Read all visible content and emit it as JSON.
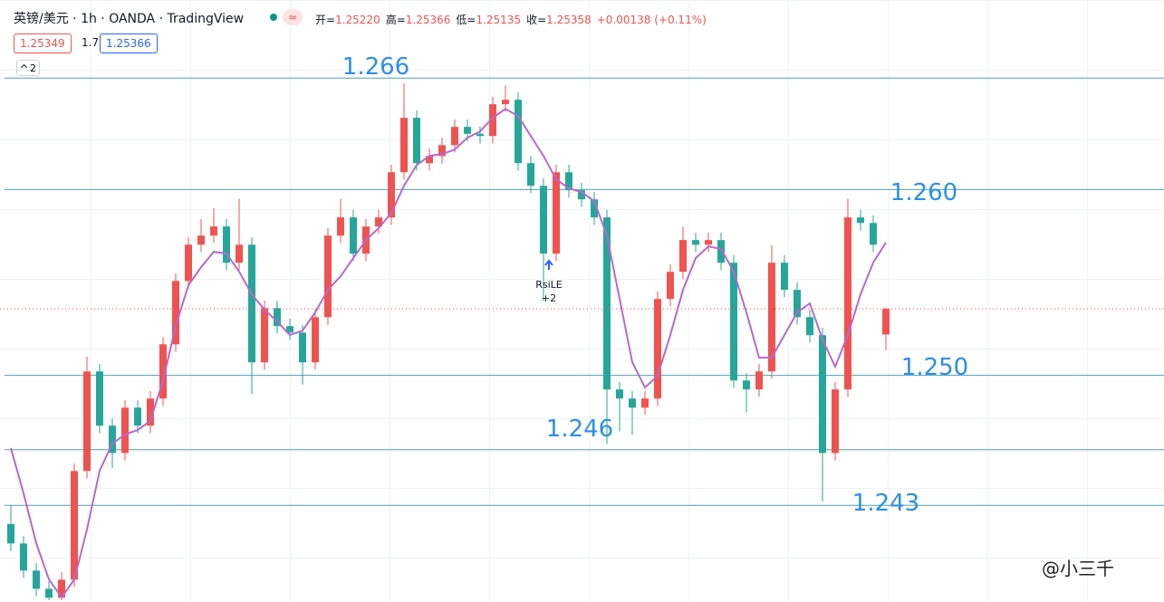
{
  "chart_data": {
    "type": "candlestick",
    "title": "英镑/美元 · 1h · OANDA · TradingView",
    "legend": {
      "items": [
        {
          "label": "开=",
          "value": "1.25220"
        },
        {
          "label": "高=",
          "value": "1.25366"
        },
        {
          "label": "低=",
          "value": "1.25135"
        },
        {
          "label": "收=",
          "value": "1.25358"
        }
      ],
      "change": "+0.00138 (+0.11%)"
    },
    "boxes": {
      "sell": "1.25349",
      "spread": "1.7",
      "buy": "1.25366",
      "indicators": "2"
    },
    "colors": {
      "up": "#ef5350",
      "down": "#26a69a"
    },
    "ohlc": [
      [
        1.242,
        1.243,
        1.24055,
        1.24095
      ],
      [
        1.24095,
        1.24135,
        1.23909,
        1.23949
      ],
      [
        1.23949,
        1.23989,
        1.23811,
        1.23851
      ],
      [
        1.23851,
        1.23891,
        1.2379,
        1.23803
      ],
      [
        1.23803,
        1.2394,
        1.2379,
        1.239
      ],
      [
        1.239,
        1.24525,
        1.2386,
        1.24485
      ],
      [
        1.24485,
        1.251,
        1.24445,
        1.25021
      ],
      [
        1.25021,
        1.25061,
        1.24689,
        1.24729
      ],
      [
        1.24729,
        1.24769,
        1.245,
        1.24582
      ],
      [
        1.24582,
        1.24866,
        1.24542,
        1.24826
      ],
      [
        1.24826,
        1.24866,
        1.24689,
        1.24729
      ],
      [
        1.24729,
        1.24915,
        1.24689,
        1.24875
      ],
      [
        1.24875,
        1.25207,
        1.24835,
        1.25167
      ],
      [
        1.25167,
        1.25548,
        1.25127,
        1.25508
      ],
      [
        1.25508,
        1.25743,
        1.25468,
        1.25703
      ],
      [
        1.25703,
        1.2584,
        1.25663,
        1.25752
      ],
      [
        1.25752,
        1.259,
        1.25712,
        1.25801
      ],
      [
        1.25801,
        1.25841,
        1.25566,
        1.25606
      ],
      [
        1.25606,
        1.2595,
        1.25566,
        1.25703
      ],
      [
        1.25703,
        1.25743,
        1.249,
        1.2507
      ],
      [
        1.2507,
        1.25402,
        1.2503,
        1.25362
      ],
      [
        1.25362,
        1.25402,
        1.25225,
        1.25265
      ],
      [
        1.25265,
        1.25305,
        1.2519,
        1.2523
      ],
      [
        1.2523,
        1.2527,
        1.2495,
        1.2507
      ],
      [
        1.2507,
        1.25353,
        1.2503,
        1.25313
      ],
      [
        1.25313,
        1.25792,
        1.25273,
        1.25752
      ],
      [
        1.25752,
        1.2595,
        1.25712,
        1.2585
      ],
      [
        1.2585,
        1.2589,
        1.25615,
        1.25655
      ],
      [
        1.25655,
        1.25841,
        1.25615,
        1.25801
      ],
      [
        1.25801,
        1.2589,
        1.25761,
        1.2585
      ],
      [
        1.2585,
        1.26133,
        1.2581,
        1.26093
      ],
      [
        1.26093,
        1.2657,
        1.26053,
        1.26386
      ],
      [
        1.26386,
        1.26426,
        1.26102,
        1.26142
      ],
      [
        1.26142,
        1.2622,
        1.26102,
        1.2618
      ],
      [
        1.2618,
        1.26279,
        1.2614,
        1.26239
      ],
      [
        1.26239,
        1.26377,
        1.26199,
        1.26337
      ],
      [
        1.26337,
        1.26377,
        1.2626,
        1.263
      ],
      [
        1.263,
        1.2634,
        1.26248,
        1.26288
      ],
      [
        1.26288,
        1.26499,
        1.26248,
        1.26459
      ],
      [
        1.26459,
        1.2656,
        1.26419,
        1.26483
      ],
      [
        1.26483,
        1.26523,
        1.26102,
        1.26142
      ],
      [
        1.26142,
        1.26182,
        1.2598,
        1.2602
      ],
      [
        1.2602,
        1.2606,
        1.254,
        1.25655
      ],
      [
        1.25655,
        1.26133,
        1.25615,
        1.26093
      ],
      [
        1.26093,
        1.26133,
        1.25956,
        1.25996
      ],
      [
        1.25996,
        1.26036,
        1.25907,
        1.25947
      ],
      [
        1.25947,
        1.25987,
        1.2581,
        1.2585
      ],
      [
        1.2585,
        1.2589,
        1.2463,
        1.24924
      ],
      [
        1.24924,
        1.24964,
        1.247,
        1.24875
      ],
      [
        1.24875,
        1.24915,
        1.2468,
        1.24826
      ],
      [
        1.24826,
        1.24915,
        1.24786,
        1.24875
      ],
      [
        1.24875,
        1.25451,
        1.24835,
        1.25411
      ],
      [
        1.25411,
        1.25597,
        1.25371,
        1.25557
      ],
      [
        1.25557,
        1.258,
        1.25517,
        1.25728
      ],
      [
        1.25728,
        1.25768,
        1.25663,
        1.25703
      ],
      [
        1.25703,
        1.25768,
        1.25663,
        1.25728
      ],
      [
        1.25728,
        1.25768,
        1.25566,
        1.25606
      ],
      [
        1.25606,
        1.25646,
        1.24932,
        1.24972
      ],
      [
        1.24972,
        1.25012,
        1.248,
        1.24924
      ],
      [
        1.24924,
        1.25061,
        1.24884,
        1.25021
      ],
      [
        1.25021,
        1.257,
        1.24981,
        1.25606
      ],
      [
        1.25606,
        1.25646,
        1.2542,
        1.2546
      ],
      [
        1.2546,
        1.255,
        1.25273,
        1.25313
      ],
      [
        1.25313,
        1.25353,
        1.25176,
        1.25216
      ],
      [
        1.25216,
        1.25256,
        1.2432,
        1.24582
      ],
      [
        1.24582,
        1.24964,
        1.24542,
        1.24924
      ],
      [
        1.24924,
        1.2595,
        1.24884,
        1.2585
      ],
      [
        1.2585,
        1.2589,
        1.2578,
        1.2582
      ],
      [
        1.2582,
        1.2586,
        1.25663,
        1.25703
      ],
      [
        1.2522,
        1.25366,
        1.25135,
        1.25358
      ]
    ],
    "ma": {
      "color": "#b768d0",
      "values": [
        1.24608,
        1.24365,
        1.24097,
        1.23902,
        1.23805,
        1.239,
        1.2417,
        1.24486,
        1.24633,
        1.24681,
        1.24706,
        1.24754,
        1.24973,
        1.25266,
        1.25485,
        1.25582,
        1.25665,
        1.25655,
        1.25558,
        1.25436,
        1.25353,
        1.2529,
        1.25217,
        1.25241,
        1.25339,
        1.2546,
        1.25533,
        1.25631,
        1.25728,
        1.25792,
        1.25874,
        1.2602,
        1.26132,
        1.26181,
        1.26191,
        1.26215,
        1.26279,
        1.26313,
        1.26386,
        1.26434,
        1.26395,
        1.26288,
        1.26181,
        1.26055,
        1.26006,
        1.25986,
        1.25938,
        1.25753,
        1.25412,
        1.25071,
        1.24934,
        1.24998,
        1.25217,
        1.2546,
        1.25631,
        1.25694,
        1.2568,
        1.25558,
        1.25339,
        1.25095,
        1.25095,
        1.25217,
        1.25339,
        1.25387,
        1.25193,
        1.25046,
        1.25217,
        1.25436,
        1.25607,
        1.25714
      ]
    },
    "levels": {
      "color": "#4e9fb5",
      "label_color": "#2b8fe6",
      "values": [
        1.266,
        1.26,
        1.25,
        1.246,
        1.243
      ],
      "value_labels": [
        "1.266",
        "1.260",
        "1.250",
        "1.246",
        "1.243"
      ]
    },
    "last_price_line": true,
    "signal": {
      "name": "RsiLE",
      "label": "+2",
      "color": "#2962ff"
    },
    "watermark": "@小三千",
    "ylim": [
      1.2378,
      1.2702
    ]
  }
}
